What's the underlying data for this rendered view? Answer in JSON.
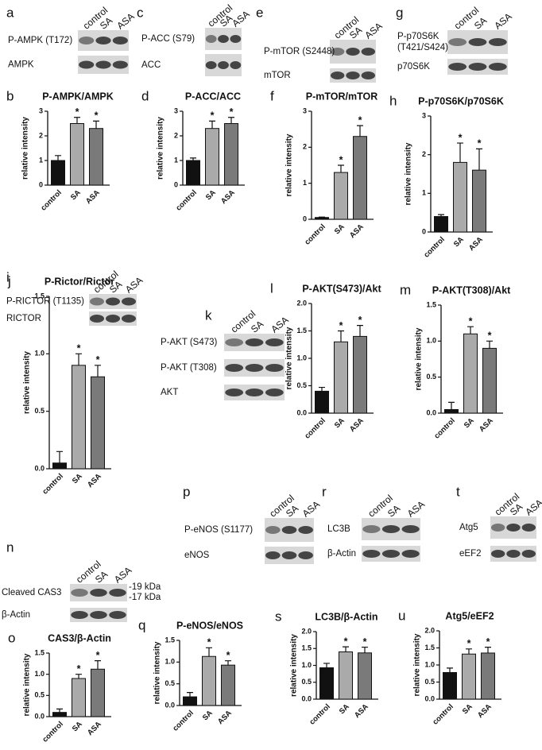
{
  "chart_data": [
    {
      "type": "bar",
      "panel": "b",
      "title": "P-AMPK/AMPK",
      "ylabel": "relative intensity",
      "categories": [
        "control",
        "SA",
        "ASA"
      ],
      "values": [
        1,
        2.5,
        2.3
      ],
      "errors": [
        0.2,
        0.25,
        0.3
      ],
      "significance": [
        null,
        "*",
        "*"
      ],
      "colors": [
        "#111111",
        "#aaaaaa",
        "#7a7a7a"
      ],
      "ylim": [
        0,
        3
      ],
      "yticks": [
        0,
        1,
        2,
        3
      ]
    },
    {
      "type": "bar",
      "panel": "d",
      "title": "P-ACC/ACC",
      "ylabel": "relative intensity",
      "categories": [
        "control",
        "SA",
        "ASA"
      ],
      "values": [
        1,
        2.3,
        2.5
      ],
      "errors": [
        0.1,
        0.3,
        0.25
      ],
      "significance": [
        null,
        "*",
        "*"
      ],
      "colors": [
        "#111111",
        "#aaaaaa",
        "#7a7a7a"
      ],
      "ylim": [
        0,
        3
      ],
      "yticks": [
        0,
        1,
        2,
        3
      ]
    },
    {
      "type": "bar",
      "panel": "f",
      "title": "P-mTOR/mTOR",
      "ylabel": "relative intensity",
      "categories": [
        "control",
        "SA",
        "ASA"
      ],
      "values": [
        0.05,
        1.3,
        2.3
      ],
      "errors": [
        0.01,
        0.2,
        0.3
      ],
      "significance": [
        null,
        "*",
        "*"
      ],
      "colors": [
        "#111111",
        "#aaaaaa",
        "#7a7a7a"
      ],
      "ylim": [
        0,
        3
      ],
      "yticks": [
        0,
        1,
        2,
        3
      ]
    },
    {
      "type": "bar",
      "panel": "h",
      "title": "P-p70S6K/p70S6K",
      "ylabel": "relative intensity",
      "categories": [
        "control",
        "SA",
        "ASA"
      ],
      "values": [
        0.4,
        1.8,
        1.6
      ],
      "errors": [
        0.05,
        0.5,
        0.55
      ],
      "significance": [
        null,
        "*",
        "*"
      ],
      "colors": [
        "#111111",
        "#aaaaaa",
        "#7a7a7a"
      ],
      "ylim": [
        0,
        3
      ],
      "yticks": [
        0,
        1,
        2,
        3
      ]
    },
    {
      "type": "bar",
      "panel": "j",
      "title": "P-Rictor/Rictor",
      "ylabel": "relative intensity",
      "categories": [
        "control",
        "SA",
        "ASA"
      ],
      "values": [
        0.05,
        0.9,
        0.8
      ],
      "errors": [
        0.1,
        0.1,
        0.1
      ],
      "significance": [
        null,
        "*",
        "*"
      ],
      "colors": [
        "#111111",
        "#aaaaaa",
        "#7a7a7a"
      ],
      "ylim": [
        0,
        1.5
      ],
      "yticks": [
        {
          "value": 0,
          "label": "0.0"
        },
        0.5,
        {
          "value": 1,
          "label": "1.0"
        },
        1.5
      ]
    },
    {
      "type": "bar",
      "panel": "l",
      "title": "P-AKT(S473)/Akt",
      "ylabel": "relative intensity",
      "categories": [
        "control",
        "SA",
        "ASA"
      ],
      "values": [
        0.4,
        1.3,
        1.4
      ],
      "errors": [
        0.07,
        0.2,
        0.2
      ],
      "significance": [
        null,
        "*",
        "*"
      ],
      "colors": [
        "#111111",
        "#aaaaaa",
        "#7a7a7a"
      ],
      "ylim": [
        0,
        2
      ],
      "yticks": [
        {
          "value": 0,
          "label": "0.0"
        },
        0.5,
        {
          "value": 1,
          "label": "1.0"
        },
        1.5,
        {
          "value": 2,
          "label": "2.0"
        }
      ]
    },
    {
      "type": "bar",
      "panel": "m",
      "title": "P-AKT(T308)/Akt",
      "ylabel": "relative intensity",
      "categories": [
        "control",
        "SA",
        "ASA"
      ],
      "values": [
        0.05,
        1.1,
        0.9
      ],
      "errors": [
        0.1,
        0.1,
        0.1
      ],
      "significance": [
        null,
        "*",
        "*"
      ],
      "colors": [
        "#111111",
        "#aaaaaa",
        "#7a7a7a"
      ],
      "ylim": [
        0,
        1.5
      ],
      "yticks": [
        {
          "value": 0,
          "label": "0.0"
        },
        0.5,
        {
          "value": 1,
          "label": "1.0"
        },
        1.5
      ]
    },
    {
      "type": "bar",
      "panel": "o",
      "title": "CAS3/β-Actin",
      "ylabel": "relative intensity",
      "categories": [
        "control",
        "SA",
        "ASA"
      ],
      "values": [
        0.1,
        0.9,
        1.12
      ],
      "errors": [
        0.08,
        0.1,
        0.2
      ],
      "significance": [
        null,
        "*",
        "*"
      ],
      "colors": [
        "#111111",
        "#aaaaaa",
        "#7a7a7a"
      ],
      "ylim": [
        0,
        1.5
      ],
      "yticks": [
        {
          "value": 0,
          "label": "0.0"
        },
        0.5,
        {
          "value": 1,
          "label": "1.0"
        },
        1.5
      ]
    },
    {
      "type": "bar",
      "panel": "q",
      "title": "P-eNOS/eNOS",
      "ylabel": "relative intensity",
      "categories": [
        "control",
        "SA",
        "ASA"
      ],
      "values": [
        0.2,
        1.13,
        0.93
      ],
      "errors": [
        0.1,
        0.2,
        0.1
      ],
      "significance": [
        null,
        "*",
        "*"
      ],
      "colors": [
        "#111111",
        "#aaaaaa",
        "#7a7a7a"
      ],
      "ylim": [
        0,
        1.5
      ],
      "yticks": [
        {
          "value": 0,
          "label": "0.0"
        },
        0.5,
        {
          "value": 1,
          "label": "1.0"
        },
        1.5
      ]
    },
    {
      "type": "bar",
      "panel": "s",
      "title": "LC3B/β-Actin",
      "ylabel": "relative intensity",
      "categories": [
        "control",
        "SA",
        "ASA"
      ],
      "values": [
        0.93,
        1.4,
        1.37
      ],
      "errors": [
        0.13,
        0.15,
        0.17
      ],
      "significance": [
        null,
        "*",
        "*"
      ],
      "colors": [
        "#111111",
        "#aaaaaa",
        "#7a7a7a"
      ],
      "ylim": [
        0,
        2
      ],
      "yticks": [
        {
          "value": 0,
          "label": "0.0"
        },
        0.5,
        {
          "value": 1,
          "label": "1.0"
        },
        1.5,
        {
          "value": 2,
          "label": "2.0"
        }
      ]
    },
    {
      "type": "bar",
      "panel": "u",
      "title": "Atg5/eEF2",
      "ylabel": "relative intensity",
      "categories": [
        "control",
        "SA",
        "ASA"
      ],
      "values": [
        0.78,
        1.32,
        1.35
      ],
      "errors": [
        0.13,
        0.15,
        0.17
      ],
      "significance": [
        null,
        "*",
        "*"
      ],
      "colors": [
        "#111111",
        "#aaaaaa",
        "#7a7a7a"
      ],
      "ylim": [
        0,
        2
      ],
      "yticks": [
        {
          "value": 0,
          "label": "0.0"
        },
        0.5,
        {
          "value": 1,
          "label": "1.0"
        },
        1.5,
        {
          "value": 2,
          "label": "2.0"
        }
      ]
    }
  ],
  "blots": [
    {
      "panel": "a",
      "lanes": [
        "control",
        "SA",
        "ASA"
      ],
      "rows": [
        {
          "label": [
            "P-AMPK (T172)"
          ]
        },
        {
          "label": [
            "AMPK"
          ]
        }
      ]
    },
    {
      "panel": "c",
      "lanes": [
        "control",
        "SA",
        "ASA"
      ],
      "rows": [
        {
          "label": [
            "P-ACC (S79)"
          ]
        },
        {
          "label": [
            "ACC"
          ]
        }
      ]
    },
    {
      "panel": "e",
      "lanes": [
        "control",
        "SA",
        "ASA"
      ],
      "rows": [
        {
          "label": [
            "P-mTOR (S2448)"
          ]
        },
        {
          "label": [
            "mTOR"
          ]
        }
      ]
    },
    {
      "panel": "g",
      "lanes": [
        "control",
        "SA",
        "ASA"
      ],
      "rows": [
        {
          "label": [
            "P-p70S6K",
            "(T421/S424)"
          ]
        },
        {
          "label": [
            "p70S6K"
          ]
        }
      ]
    },
    {
      "panel": "i",
      "lanes": [
        "control",
        "SA",
        "ASA"
      ],
      "rows": [
        {
          "label": [
            "P-RICTOR (T1135)"
          ]
        },
        {
          "label": [
            "RICTOR"
          ]
        }
      ]
    },
    {
      "panel": "k",
      "lanes": [
        "control",
        "SA",
        "ASA"
      ],
      "rows": [
        {
          "label": [
            "P-AKT (S473)"
          ]
        },
        {
          "label": [
            "P-AKT (T308)"
          ]
        },
        {
          "label": [
            "AKT"
          ]
        }
      ]
    },
    {
      "panel": "n",
      "lanes": [
        "control",
        "SA",
        "ASA"
      ],
      "rows": [
        {
          "label": [
            "Cleaved CAS3"
          ],
          "markers": [
            "-19 kDa",
            "-17 kDa"
          ]
        },
        {
          "label": [
            "β-Actin"
          ]
        }
      ]
    },
    {
      "panel": "p",
      "lanes": [
        "control",
        "SA",
        "ASA"
      ],
      "rows": [
        {
          "label": [
            "P-eNOS (S1177)"
          ]
        },
        {
          "label": [
            "eNOS"
          ]
        }
      ]
    },
    {
      "panel": "r",
      "lanes": [
        "control",
        "SA",
        "ASA"
      ],
      "rows": [
        {
          "label": [
            "LC3B"
          ]
        },
        {
          "label": [
            "β-Actin"
          ]
        }
      ]
    },
    {
      "panel": "t",
      "lanes": [
        "control",
        "SA",
        "ASA"
      ],
      "rows": [
        {
          "label": [
            "Atg5"
          ]
        },
        {
          "label": [
            "eEF2"
          ]
        }
      ]
    }
  ]
}
